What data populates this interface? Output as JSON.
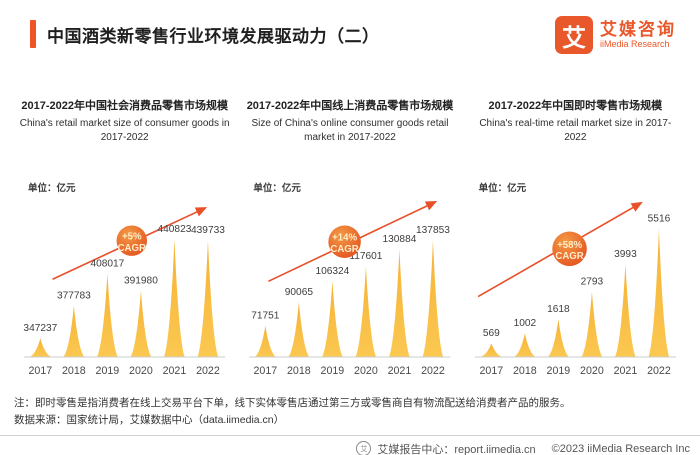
{
  "header": {
    "title": "中国酒类新零售行业环境发展驱动力（二）",
    "logo": {
      "mark": "艾",
      "name_zh": "艾媒咨询",
      "name_en": "iiMedia Research"
    }
  },
  "chart_data": [
    {
      "type": "bar",
      "title": "2017-2022年中国社会消费品零售市场规模",
      "subtitle": "China's retail market size of consumer goods in 2017-2022",
      "unit_label": "单位：亿元",
      "categories": [
        "2017",
        "2018",
        "2019",
        "2020",
        "2021",
        "2022"
      ],
      "values": [
        347237,
        377783,
        408017,
        391980,
        440823,
        439733
      ],
      "cagr_badge": {
        "rate": "+5%",
        "label": "CAGR"
      },
      "ylabel": "亿元",
      "ylim": [
        330000,
        445000
      ],
      "grid": false,
      "legend": false,
      "annotation": "orange upward trend arrow with CAGR badge"
    },
    {
      "type": "bar",
      "title": "2017-2022年中国线上消费品零售市场规模",
      "subtitle": "Size of China's online consumer goods retail market in 2017-2022",
      "unit_label": "单位：亿元",
      "categories": [
        "2017",
        "2018",
        "2019",
        "2020",
        "2021",
        "2022"
      ],
      "values": [
        71751,
        90065,
        106324,
        117601,
        130884,
        137853
      ],
      "cagr_badge": {
        "rate": "+14%",
        "label": "CAGR"
      },
      "ylabel": "亿元",
      "ylim": [
        48000,
        142000
      ],
      "grid": false,
      "legend": false,
      "annotation": "orange upward trend arrow with CAGR badge"
    },
    {
      "type": "bar",
      "title": "2017-2022年中国即时零售市场规模",
      "subtitle": "China's real-time retail market size in 2017-2022",
      "unit_label": "单位：亿元",
      "categories": [
        "2017",
        "2018",
        "2019",
        "2020",
        "2021",
        "2022"
      ],
      "values": [
        569,
        1002,
        1618,
        2793,
        3993,
        5516
      ],
      "cagr_badge": {
        "rate": "+58%",
        "label": "CAGR"
      },
      "ylabel": "亿元",
      "ylim": [
        0,
        5700
      ],
      "grid": false,
      "legend": false,
      "annotation": "orange upward trend arrow with CAGR badge"
    }
  ],
  "notes": {
    "line1": "注：即时零售是指消费者在线上交易平台下单，线下实体零售店通过第三方或零售商自有物流配送给消费者产品的服务。",
    "line2": "数据来源：国家统计局，艾媒数据中心（data.iimedia.cn）"
  },
  "footer": {
    "icon_glyph": "艾",
    "report_center": "艾媒报告中心：report.iimedia.cn",
    "copyright": "©2023  iiMedia Research Inc"
  },
  "colors": {
    "brand_orange": "#e9582a",
    "accent_bar": "#ee5426",
    "trend_arrow": "#e8502a",
    "spike_yellow_top": "#f6b236",
    "spike_yellow_bottom": "#fbc851",
    "badge_text": "#ffedc9",
    "axis_line": "#cccccc"
  }
}
